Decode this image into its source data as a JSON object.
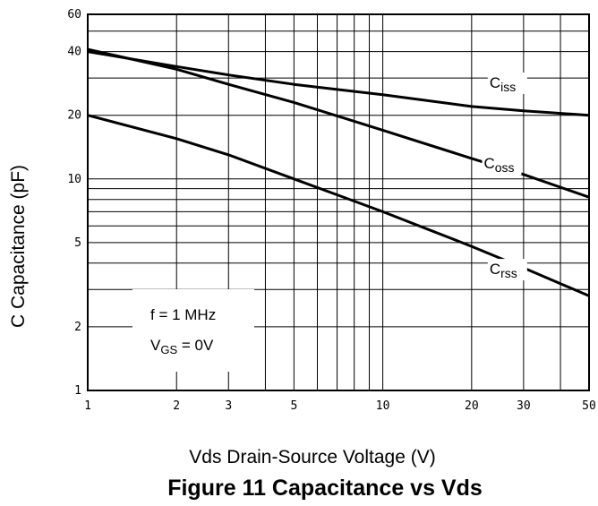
{
  "chart_data": {
    "type": "line",
    "title": "Figure 11 Capacitance vs Vds",
    "xlabel": "Vds Drain-Source Voltage (V)",
    "ylabel": "C Capacitance (pF)",
    "xscale": "log",
    "yscale": "log",
    "xlim": [
      1,
      50
    ],
    "ylim": [
      1,
      60
    ],
    "grid": true,
    "x_ticks": [
      {
        "value": 1,
        "label": "1"
      },
      {
        "value": 2,
        "label": "2"
      },
      {
        "value": 3,
        "label": "3"
      },
      {
        "value": 5,
        "label": "5"
      },
      {
        "value": 10,
        "label": "10"
      },
      {
        "value": 20,
        "label": "20"
      },
      {
        "value": 30,
        "label": "30"
      },
      {
        "value": 50,
        "label": "50"
      }
    ],
    "y_ticks": [
      {
        "value": 1,
        "label": "1"
      },
      {
        "value": 2,
        "label": "2"
      },
      {
        "value": 5,
        "label": "5"
      },
      {
        "value": 10,
        "label": "10"
      },
      {
        "value": 20,
        "label": "20"
      },
      {
        "value": 40,
        "label": "40"
      },
      {
        "value": 60,
        "label": "60"
      }
    ],
    "x_grid": [
      1,
      2,
      3,
      4,
      5,
      6,
      7,
      8,
      9,
      10,
      20,
      30,
      40,
      50
    ],
    "y_grid": [
      1,
      2,
      3,
      4,
      5,
      6,
      7,
      8,
      9,
      10,
      20,
      30,
      40,
      50,
      60
    ],
    "series": [
      {
        "name": "C",
        "sub": "iss",
        "x": [
          1,
          2,
          3,
          5,
          10,
          20,
          30,
          50
        ],
        "y": [
          40,
          34,
          31,
          28,
          25,
          22,
          21,
          20
        ]
      },
      {
        "name": "C",
        "sub": "oss",
        "x": [
          1,
          2,
          3,
          5,
          10,
          20,
          30,
          50
        ],
        "y": [
          41,
          33,
          28,
          23,
          17,
          12.5,
          10.5,
          8.2
        ]
      },
      {
        "name": "C",
        "sub": "rss",
        "x": [
          1,
          2,
          3,
          5,
          10,
          20,
          30,
          50
        ],
        "y": [
          20,
          15.5,
          13,
          10,
          7,
          4.8,
          3.8,
          2.8
        ]
      }
    ],
    "annotation": {
      "line1": "f = 1 MHz",
      "line2_main": "V",
      "line2_sub": "GS",
      "line2_rest": " = 0V"
    }
  }
}
